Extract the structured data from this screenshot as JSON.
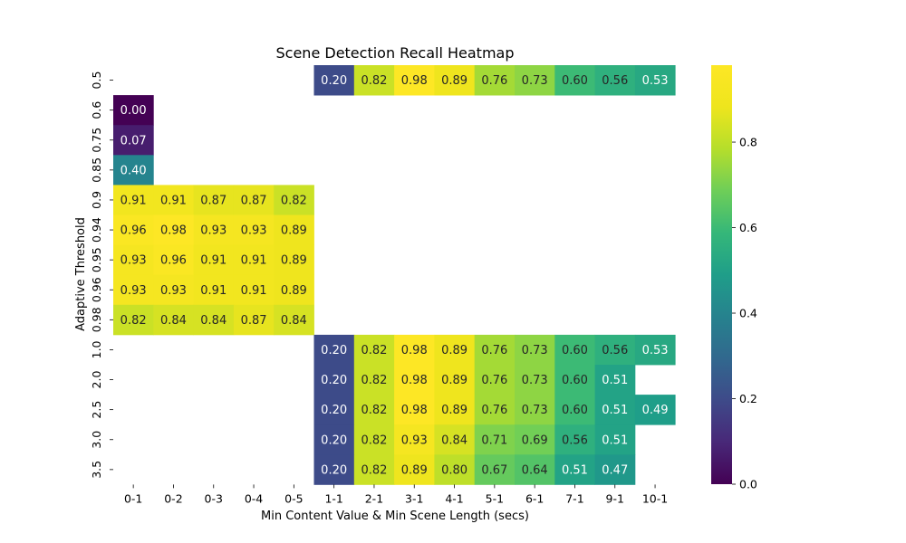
{
  "chart_data": {
    "type": "heatmap",
    "title": "Scene Detection Recall Heatmap",
    "xlabel": "Min Content Value & Min Scene Length (secs)",
    "ylabel": "Adaptive Threshold",
    "x_categories": [
      "0-1",
      "0-2",
      "0-3",
      "0-4",
      "0-5",
      "1-1",
      "2-1",
      "3-1",
      "4-1",
      "5-1",
      "6-1",
      "7-1",
      "9-1",
      "10-1"
    ],
    "y_categories": [
      "0.5",
      "0.6",
      "0.75",
      "0.85",
      "0.9",
      "0.94",
      "0.95",
      "0.96",
      "0.98",
      "1.0",
      "2.0",
      "2.5",
      "3.0",
      "3.5"
    ],
    "values": [
      [
        null,
        null,
        null,
        null,
        null,
        0.2,
        0.82,
        0.98,
        0.89,
        0.76,
        0.73,
        0.6,
        0.56,
        0.53
      ],
      [
        0.0,
        null,
        null,
        null,
        null,
        null,
        null,
        null,
        null,
        null,
        null,
        null,
        null,
        null
      ],
      [
        0.07,
        null,
        null,
        null,
        null,
        null,
        null,
        null,
        null,
        null,
        null,
        null,
        null,
        null
      ],
      [
        0.4,
        null,
        null,
        null,
        null,
        null,
        null,
        null,
        null,
        null,
        null,
        null,
        null,
        null
      ],
      [
        0.91,
        0.91,
        0.87,
        0.87,
        0.82,
        null,
        null,
        null,
        null,
        null,
        null,
        null,
        null,
        null
      ],
      [
        0.96,
        0.98,
        0.93,
        0.93,
        0.89,
        null,
        null,
        null,
        null,
        null,
        null,
        null,
        null,
        null
      ],
      [
        0.93,
        0.96,
        0.91,
        0.91,
        0.89,
        null,
        null,
        null,
        null,
        null,
        null,
        null,
        null,
        null
      ],
      [
        0.93,
        0.93,
        0.91,
        0.91,
        0.89,
        null,
        null,
        null,
        null,
        null,
        null,
        null,
        null,
        null
      ],
      [
        0.82,
        0.84,
        0.84,
        0.87,
        0.84,
        null,
        null,
        null,
        null,
        null,
        null,
        null,
        null,
        null
      ],
      [
        null,
        null,
        null,
        null,
        null,
        0.2,
        0.82,
        0.98,
        0.89,
        0.76,
        0.73,
        0.6,
        0.56,
        0.53
      ],
      [
        null,
        null,
        null,
        null,
        null,
        0.2,
        0.82,
        0.98,
        0.89,
        0.76,
        0.73,
        0.6,
        0.51,
        null
      ],
      [
        null,
        null,
        null,
        null,
        null,
        0.2,
        0.82,
        0.98,
        0.89,
        0.76,
        0.73,
        0.6,
        0.51,
        0.49
      ],
      [
        null,
        null,
        null,
        null,
        null,
        0.2,
        0.82,
        0.93,
        0.84,
        0.71,
        0.69,
        0.56,
        0.51,
        null
      ],
      [
        null,
        null,
        null,
        null,
        null,
        0.2,
        0.82,
        0.89,
        0.8,
        0.67,
        0.64,
        0.51,
        0.47,
        null
      ]
    ],
    "colormap": "viridis",
    "colorbar": {
      "range": [
        0,
        0.98
      ],
      "ticks": [
        "0.0",
        "0.2",
        "0.4",
        "0.6",
        "0.8"
      ]
    },
    "grid": false
  }
}
